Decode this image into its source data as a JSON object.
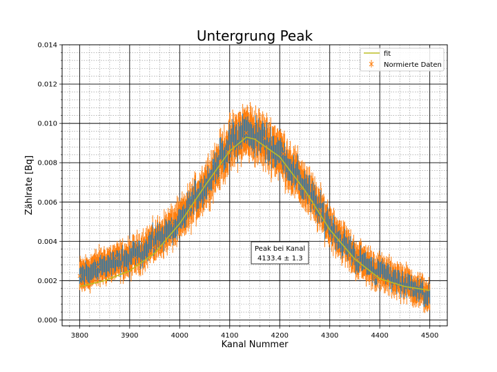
{
  "chart_data": {
    "type": "scatter",
    "title": "Untergrung Peak",
    "xlabel": "Kanal Nummer",
    "ylabel": "Zählrate [Bq]",
    "xlim": [
      3765,
      4535
    ],
    "ylim": [
      -0.0003,
      0.014
    ],
    "x_ticks": [
      3800,
      3900,
      4000,
      4100,
      4200,
      4300,
      4400,
      4500
    ],
    "y_ticks": [
      0.0,
      0.002,
      0.004,
      0.006,
      0.008,
      0.01,
      0.012,
      0.014
    ],
    "x_tick_labels": [
      "3800",
      "3900",
      "4000",
      "4100",
      "4200",
      "4300",
      "4400",
      "4500"
    ],
    "y_tick_labels": [
      "0.000",
      "0.002",
      "0.004",
      "0.006",
      "0.008",
      "0.010",
      "0.012",
      "0.014"
    ],
    "grid": "major and minor",
    "legend_position": "top-right",
    "series": [
      {
        "name": "fit",
        "kind": "line",
        "color": "#bcbd22",
        "model": "gaussian plus linear background",
        "x": [
          3800,
          3850,
          3900,
          3950,
          4000,
          4050,
          4100,
          4133.4,
          4150,
          4200,
          4250,
          4300,
          4350,
          4400,
          4450,
          4500
        ],
        "y": [
          0.0017,
          0.002,
          0.0025,
          0.0034,
          0.0049,
          0.0068,
          0.0086,
          0.0093,
          0.0092,
          0.0083,
          0.0066,
          0.0046,
          0.0031,
          0.0021,
          0.0017,
          0.0015
        ]
      },
      {
        "name": "Normierte Daten",
        "kind": "errorbar",
        "color": "#ff7f0e",
        "marker": "x",
        "x_range": [
          3800,
          4500
        ],
        "envelope_x": [
          3800,
          3850,
          3900,
          3950,
          4000,
          4050,
          4100,
          4133,
          4150,
          4200,
          4250,
          4300,
          4350,
          4400,
          4450,
          4500
        ],
        "envelope_y": [
          0.0022,
          0.0028,
          0.0031,
          0.004,
          0.005,
          0.0068,
          0.0089,
          0.0096,
          0.0094,
          0.0085,
          0.0068,
          0.0048,
          0.0032,
          0.0024,
          0.0019,
          0.0012
        ],
        "spread": 0.0009,
        "error": 0.0011
      }
    ],
    "annotation": {
      "line1": "Peak bei Kanal",
      "line2": "4133.4 ± 1.3",
      "x": 4133,
      "y": 0.0034
    }
  }
}
